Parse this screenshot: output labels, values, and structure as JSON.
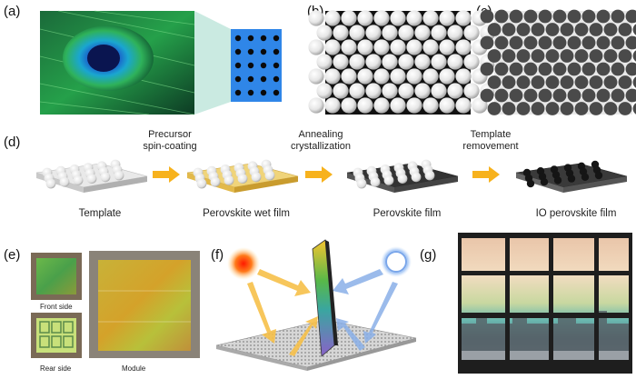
{
  "panels": {
    "a": {
      "label": "(a)"
    },
    "b": {
      "label": "(b)"
    },
    "c": {
      "label": "(c)"
    },
    "d": {
      "label": "(d)",
      "steps": [
        {
          "line1": "Precursor",
          "line2": "spin-coating"
        },
        {
          "line1": "Annealing",
          "line2": "crystallization"
        },
        {
          "line1": "Template",
          "line2": "removement"
        }
      ],
      "stages": [
        "Template",
        "Perovskite wet film",
        "Perovskite film",
        "IO perovskite film"
      ]
    },
    "e": {
      "label": "(e)",
      "front": "Front side",
      "rear": "Rear side",
      "module": "Module"
    },
    "f": {
      "label": "(f)"
    },
    "g": {
      "label": "(g)"
    }
  },
  "colors": {
    "arrow": "#f7b21d",
    "sphere": "#ffffff",
    "blue_tile": "#2f86e8",
    "dark_disc": "#4a4a4a"
  }
}
